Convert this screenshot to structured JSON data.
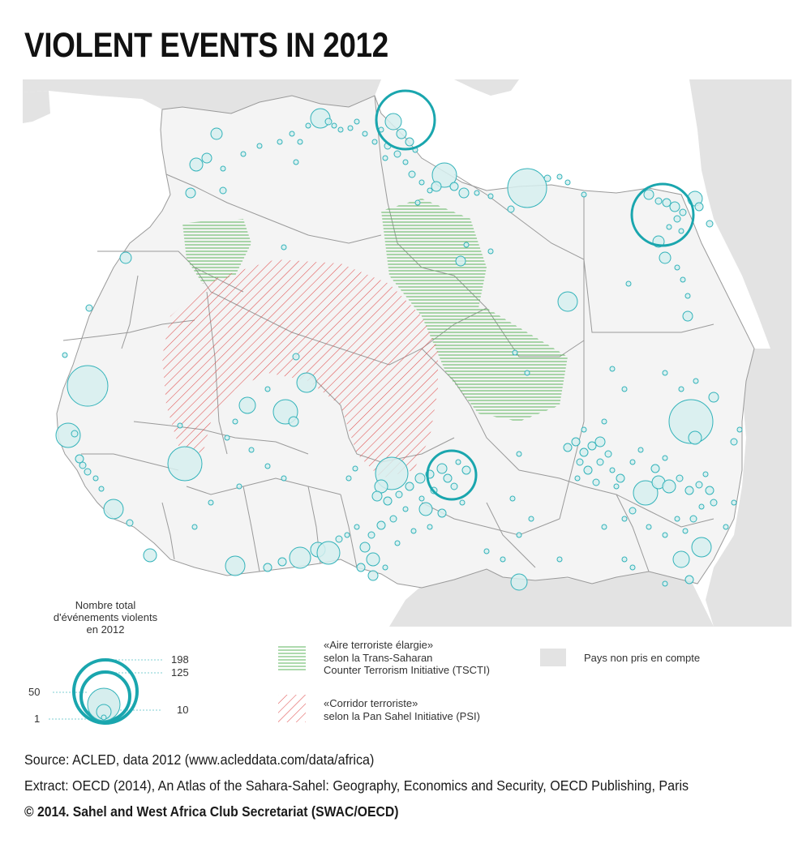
{
  "title": "VIOLENT EVENTS IN 2012",
  "colors": {
    "land": "#f4f4f4",
    "excluded_land": "#e3e3e3",
    "sea": "#ffffff",
    "border": "#9a9a9a",
    "event_fill": "#d6eeee",
    "event_stroke": "#33b3ba",
    "event_highlight": "#1aa6ae",
    "tscti_hatch": "#5cb55c",
    "psi_hatch": "#e05050"
  },
  "icons": {
    "event_marker": "circle",
    "tscti_swatch": "horizontal-hatch",
    "psi_swatch": "diagonal-hatch",
    "excluded_swatch": "grey-square"
  },
  "legend": {
    "size_title_lines": [
      "Nombre total",
      "d'événements violents",
      "en 2012"
    ],
    "size_values": [
      {
        "label": "198",
        "events": 198
      },
      {
        "label": "125",
        "events": 125
      },
      {
        "label": "50",
        "events": 50
      },
      {
        "label": "10",
        "events": 10
      },
      {
        "label": "1",
        "events": 1
      }
    ],
    "tscti_lines": [
      "«Aire terroriste élargie»",
      "selon la Trans-Saharan",
      "Counter Terrorism Initiative (TSCTI)"
    ],
    "psi_lines": [
      "«Corridor terroriste»",
      "selon la Pan Sahel Initiative (PSI)"
    ],
    "excluded_label": "Pays non pris en compte"
  },
  "footer": {
    "source": "Source: ACLED, data 2012 (www.acleddata.com/data/africa)",
    "extract": "Extract: OECD (2014), An Atlas of the Sahara-Sahel: Geography, Economics  and Security, OECD Publishing, Paris",
    "copyright": "© 2014. Sahel and West Africa Club Secretariat (SWAC/OECD)"
  }
}
